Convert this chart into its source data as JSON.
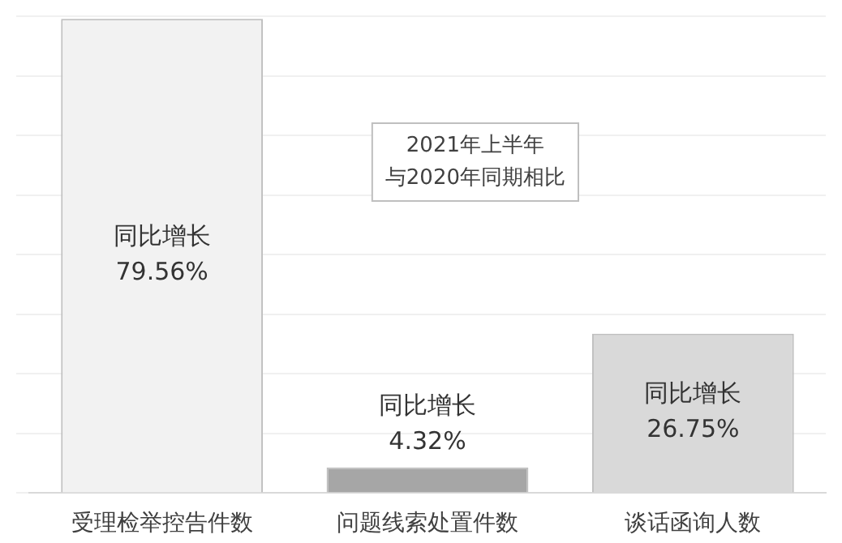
{
  "chart_data": {
    "type": "bar",
    "categories": [
      "受理检举控告件数",
      "问题线索处置件数",
      "谈话函询人数"
    ],
    "values": [
      79.56,
      4.32,
      26.75
    ],
    "colors": [
      "#f2f2f2",
      "#a6a6a6",
      "#d9d9d9"
    ],
    "value_labels": [
      "同比增长\n79.56%",
      "同比增长\n4.32%",
      "同比增长\n26.75%"
    ],
    "annotations": [
      "2021年上半年",
      "与2020年同期相比"
    ],
    "grid": "y",
    "legend": false
  }
}
